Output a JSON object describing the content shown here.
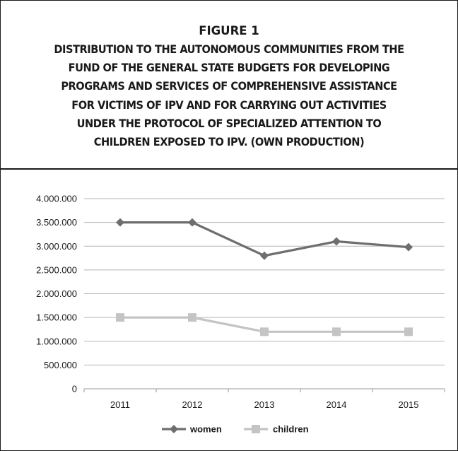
{
  "figure": {
    "label": "FIGURE 1",
    "title_lines": [
      "DISTRIBUTION TO THE AUTONOMOUS COMMUNITIES FROM THE",
      "FUND OF THE GENERAL STATE BUDGETS FOR DEVELOPING",
      "PROGRAMS AND SERVICES OF COMPREHENSIVE ASSISTANCE",
      "FOR VICTIMS OF IPV AND FOR CARRYING OUT ACTIVITIES",
      "UNDER THE PROTOCOL OF SPECIALIZED ATTENTION TO",
      "CHILDREN EXPOSED TO IPV. (OWN PRODUCTION)"
    ]
  },
  "chart_data": {
    "type": "line",
    "title": "DISTRIBUTION TO THE AUTONOMOUS COMMUNITIES FROM THE FUND OF THE GENERAL STATE BUDGETS FOR DEVELOPING PROGRAMS AND SERVICES OF COMPREHENSIVE ASSISTANCE FOR VICTIMS OF IPV AND FOR CARRYING OUT ACTIVITIES UNDER THE PROTOCOL OF SPECIALIZED ATTENTION TO CHILDREN EXPOSED TO IPV. (OWN PRODUCTION)",
    "xlabel": "",
    "ylabel": "",
    "categories": [
      "2011",
      "2012",
      "2013",
      "2014",
      "2015"
    ],
    "ylim": [
      0,
      4000000
    ],
    "yticks": [
      0,
      500000,
      1000000,
      1500000,
      2000000,
      2500000,
      3000000,
      3500000,
      4000000
    ],
    "ytick_labels": [
      "0",
      "500.000",
      "1.000.000",
      "1.500.000",
      "2.000.000",
      "2.500.000",
      "3.000.000",
      "3.500.000",
      "4.000.000"
    ],
    "grid": true,
    "legend_position": "bottom",
    "series": [
      {
        "name": "women",
        "values": [
          3500000,
          3500000,
          2800000,
          3100000,
          2980000
        ],
        "color": "#6e6e6e",
        "marker": "diamond"
      },
      {
        "name": "children",
        "values": [
          1500000,
          1500000,
          1200000,
          1200000,
          1200000
        ],
        "color": "#c4c4c4",
        "marker": "square"
      }
    ]
  }
}
